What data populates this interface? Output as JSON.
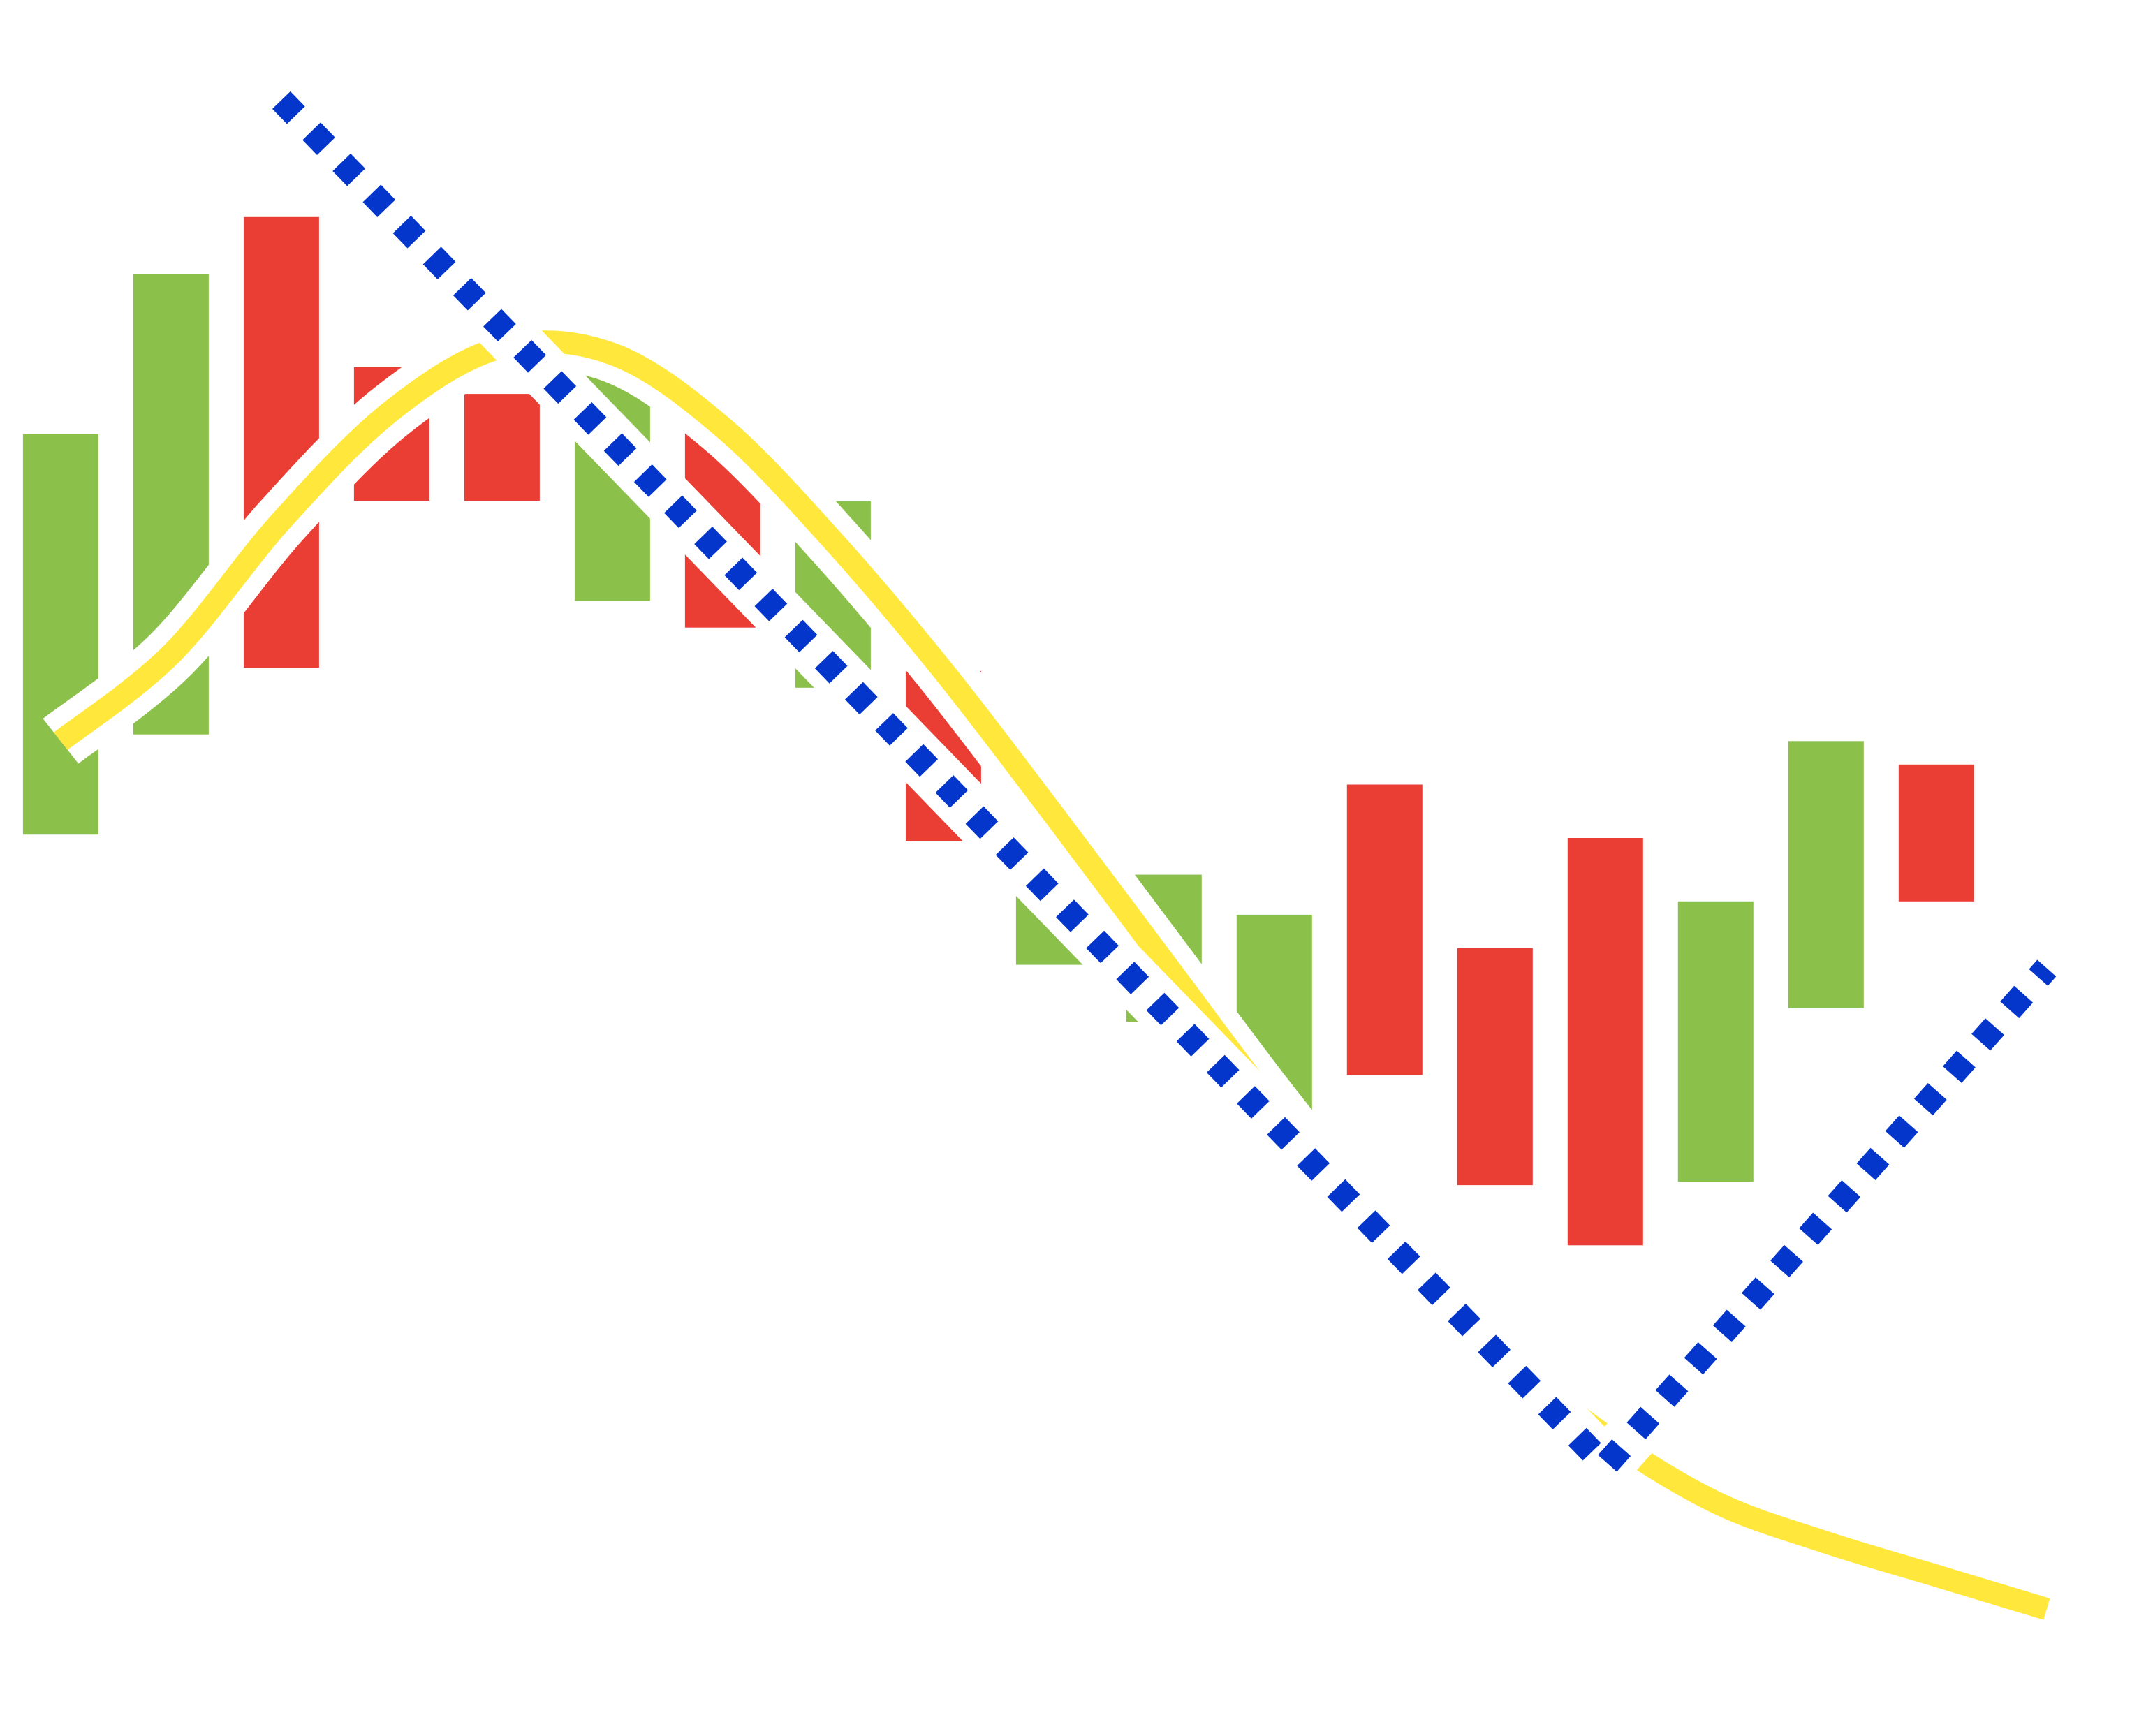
{
  "chart_data": {
    "type": "bar",
    "title": "",
    "xlabel": "",
    "ylabel": "",
    "grid": false,
    "legend": "none",
    "candles": [
      {
        "low": 1150,
        "high": 1750,
        "color": "green"
      },
      {
        "low": 1300,
        "high": 1990,
        "color": "green"
      },
      {
        "low": 1400,
        "high": 2075,
        "color": "red"
      },
      {
        "low": 1650,
        "high": 1850,
        "color": "red"
      },
      {
        "low": 1650,
        "high": 1810,
        "color": "red"
      },
      {
        "low": 1500,
        "high": 1880,
        "color": "green"
      },
      {
        "low": 1460,
        "high": 1760,
        "color": "red"
      },
      {
        "low": 1370,
        "high": 1650,
        "color": "green"
      },
      {
        "low": 1140,
        "high": 1395,
        "color": "red"
      },
      {
        "low": 955,
        "high": 1125,
        "color": "green"
      },
      {
        "low": 870,
        "high": 1090,
        "color": "green"
      },
      {
        "low": 735,
        "high": 1030,
        "color": "green"
      },
      {
        "low": 790,
        "high": 1225,
        "color": "red"
      },
      {
        "low": 625,
        "high": 980,
        "color": "red"
      },
      {
        "low": 535,
        "high": 1145,
        "color": "red"
      },
      {
        "low": 630,
        "high": 1050,
        "color": "green"
      },
      {
        "low": 890,
        "high": 1290,
        "color": "green"
      },
      {
        "low": 1050,
        "high": 1255,
        "color": "red"
      }
    ],
    "series": [
      {
        "type": "curve",
        "x": [
          1,
          2,
          3,
          4,
          5,
          6,
          7,
          8,
          9,
          10,
          11,
          12,
          13,
          14,
          15,
          16,
          17,
          18,
          19
        ],
        "values": [
          1290,
          1420,
          1620,
          1785,
          1880,
          1870,
          1760,
          1590,
          1395,
          1180,
          960,
          740,
          540,
          380,
          250,
          150,
          90,
          40,
          -10
        ]
      },
      {
        "type": "trend",
        "x": [
          3,
          15,
          19
        ],
        "values": [
          2250,
          205,
          950
        ]
      }
    ],
    "colors": {
      "green": "#8bc14a",
      "red": "#ea3e35",
      "curve": "#ffe83b",
      "trend": "#0436cc",
      "background": "#ffffff"
    },
    "xlim": [
      0.45,
      19.9
    ],
    "ylim": [
      -200,
      2400
    ]
  }
}
